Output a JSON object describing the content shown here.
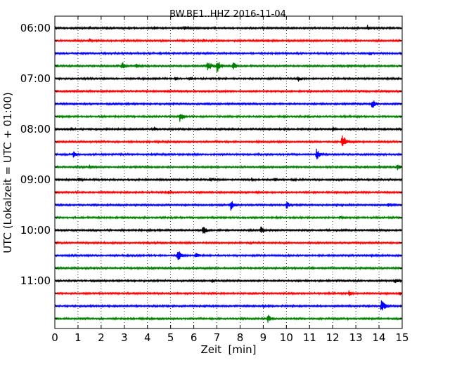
{
  "chart_data": {
    "type": "line",
    "title": "BW.BE1..HHZ 2016-11-04",
    "xlabel": "Zeit  [min]",
    "ylabel": "UTC (Lokalzeit = UTC + 01:00)",
    "xlim": [
      0,
      15
    ],
    "x_ticks": [
      "0",
      "1",
      "2",
      "3",
      "4",
      "5",
      "6",
      "7",
      "8",
      "9",
      "10",
      "11",
      "12",
      "13",
      "14",
      "15"
    ],
    "y_tick_labels": [
      "06:00",
      "07:00",
      "08:00",
      "09:00",
      "10:00",
      "11:00"
    ],
    "grid": "vertical-dotted",
    "trace_colors": [
      "#000000",
      "#ff0000",
      "#0000ff",
      "#008000"
    ],
    "series": [
      {
        "start": "06:00",
        "color": "#000000",
        "events": [
          {
            "t": 1.5,
            "amp": 0.15
          },
          {
            "t": 4.3,
            "amp": 0.2
          },
          {
            "t": 5.6,
            "amp": 0.3
          },
          {
            "t": 13.5,
            "amp": 0.35
          }
        ]
      },
      {
        "start": "06:15",
        "color": "#ff0000",
        "events": [
          {
            "t": 1.5,
            "amp": 0.25
          },
          {
            "t": 6.4,
            "amp": 0.2
          },
          {
            "t": 9.2,
            "amp": 0.15
          }
        ]
      },
      {
        "start": "06:30",
        "color": "#0000ff",
        "events": [
          {
            "t": 13.6,
            "amp": 0.2
          }
        ]
      },
      {
        "start": "06:45",
        "color": "#008000",
        "events": [
          {
            "t": 2.9,
            "amp": 0.5
          },
          {
            "t": 3.5,
            "amp": 0.3
          },
          {
            "t": 6.6,
            "amp": 0.65
          },
          {
            "t": 7.0,
            "amp": 0.8
          },
          {
            "t": 7.7,
            "amp": 0.45
          },
          {
            "t": 12.7,
            "amp": 0.2
          }
        ]
      },
      {
        "start": "07:00",
        "color": "#000000",
        "events": [
          {
            "t": 5.2,
            "amp": 0.2
          },
          {
            "t": 5.8,
            "amp": 0.25
          },
          {
            "t": 10.5,
            "amp": 0.35
          }
        ]
      },
      {
        "start": "07:15",
        "color": "#ff0000",
        "events": [
          {
            "t": 9.2,
            "amp": 0.1
          }
        ]
      },
      {
        "start": "07:30",
        "color": "#0000ff",
        "events": [
          {
            "t": 3.1,
            "amp": 0.15
          },
          {
            "t": 13.7,
            "amp": 0.55
          }
        ]
      },
      {
        "start": "07:45",
        "color": "#008000",
        "events": [
          {
            "t": 0.2,
            "amp": 0.15
          },
          {
            "t": 5.4,
            "amp": 0.6
          },
          {
            "t": 9.9,
            "amp": 0.15
          }
        ]
      },
      {
        "start": "08:00",
        "color": "#000000",
        "events": [
          {
            "t": 0.7,
            "amp": 0.2
          },
          {
            "t": 4.3,
            "amp": 0.25
          },
          {
            "t": 12.0,
            "amp": 0.3
          }
        ]
      },
      {
        "start": "08:15",
        "color": "#ff0000",
        "events": [
          {
            "t": 9.7,
            "amp": 0.15
          },
          {
            "t": 12.4,
            "amp": 0.85
          }
        ]
      },
      {
        "start": "08:30",
        "color": "#0000ff",
        "events": [
          {
            "t": 0.8,
            "amp": 0.4
          },
          {
            "t": 11.3,
            "amp": 0.6
          }
        ]
      },
      {
        "start": "08:45",
        "color": "#008000",
        "events": [
          {
            "t": 1.5,
            "amp": 0.25
          },
          {
            "t": 13.4,
            "amp": 0.2
          },
          {
            "t": 14.8,
            "amp": 0.4
          }
        ]
      },
      {
        "start": "09:00",
        "color": "#000000",
        "events": [
          {
            "t": 1.0,
            "amp": 0.25
          },
          {
            "t": 6.7,
            "amp": 0.3
          },
          {
            "t": 8.5,
            "amp": 0.25
          },
          {
            "t": 9.5,
            "amp": 0.2
          },
          {
            "t": 10.3,
            "amp": 0.2
          },
          {
            "t": 15.0,
            "amp": 0.25
          }
        ]
      },
      {
        "start": "09:15",
        "color": "#ff0000",
        "events": [
          {
            "t": 4.9,
            "amp": 0.25
          },
          {
            "t": 8.7,
            "amp": 0.2
          }
        ]
      },
      {
        "start": "09:30",
        "color": "#0000ff",
        "events": [
          {
            "t": 7.6,
            "amp": 0.6
          },
          {
            "t": 10.0,
            "amp": 0.45
          },
          {
            "t": 14.4,
            "amp": 0.25
          }
        ]
      },
      {
        "start": "09:45",
        "color": "#008000",
        "events": [
          {
            "t": 12.3,
            "amp": 0.2
          }
        ]
      },
      {
        "start": "10:00",
        "color": "#000000",
        "events": [
          {
            "t": 6.4,
            "amp": 0.55
          },
          {
            "t": 8.9,
            "amp": 0.45
          }
        ]
      },
      {
        "start": "10:15",
        "color": "#ff0000",
        "events": []
      },
      {
        "start": "10:30",
        "color": "#0000ff",
        "events": [
          {
            "t": 5.3,
            "amp": 0.75
          },
          {
            "t": 6.1,
            "amp": 0.35
          }
        ]
      },
      {
        "start": "10:45",
        "color": "#008000",
        "events": [
          {
            "t": 4.2,
            "amp": 0.15
          },
          {
            "t": 11.1,
            "amp": 0.15
          }
        ]
      },
      {
        "start": "11:00",
        "color": "#000000",
        "events": [
          {
            "t": 6.8,
            "amp": 0.2
          },
          {
            "t": 14.7,
            "amp": 0.3
          }
        ]
      },
      {
        "start": "11:15",
        "color": "#ff0000",
        "events": [
          {
            "t": 12.7,
            "amp": 0.35
          },
          {
            "t": 14.9,
            "amp": 0.3
          }
        ]
      },
      {
        "start": "11:30",
        "color": "#0000ff",
        "events": [
          {
            "t": 9.0,
            "amp": 0.2
          },
          {
            "t": 14.1,
            "amp": 0.7
          }
        ]
      },
      {
        "start": "11:45",
        "color": "#008000",
        "events": [
          {
            "t": 9.2,
            "amp": 0.45
          }
        ]
      }
    ]
  }
}
